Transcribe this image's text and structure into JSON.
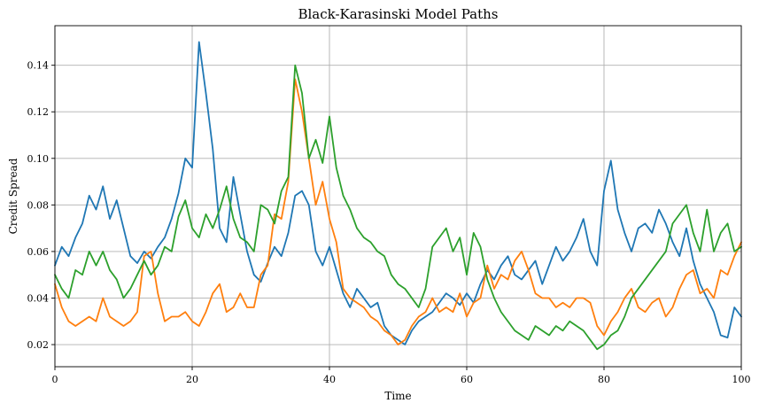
{
  "chart_data": {
    "type": "line",
    "title": "Black-Karasinski Model Paths",
    "xlabel": "Time",
    "ylabel": "Credit Spread",
    "xlim": [
      0,
      100
    ],
    "ylim": [
      0.0105,
      0.157
    ],
    "xticks": [
      0,
      20,
      40,
      60,
      80,
      100
    ],
    "xtick_labels": [
      "0",
      "20",
      "40",
      "60",
      "80",
      "100"
    ],
    "yticks": [
      0.02,
      0.04,
      0.06,
      0.08,
      0.1,
      0.12,
      0.14
    ],
    "ytick_labels": [
      "0.02",
      "0.04",
      "0.06",
      "0.08",
      "0.10",
      "0.12",
      "0.14"
    ],
    "grid": true,
    "series": [
      {
        "color": "#1f77b4",
        "x": [
          0,
          1,
          2,
          3,
          4,
          5,
          6,
          7,
          8,
          9,
          10,
          11,
          12,
          13,
          14,
          15,
          16,
          17,
          18,
          19,
          20,
          21,
          22,
          23,
          24,
          25,
          26,
          27,
          28,
          29,
          30,
          31,
          32,
          33,
          34,
          35,
          36,
          37,
          38,
          39,
          40,
          41,
          42,
          43,
          44,
          45,
          46,
          47,
          48,
          49,
          50,
          51,
          52,
          53,
          54,
          55,
          56,
          57,
          58,
          59,
          60,
          61,
          62,
          63,
          64,
          65,
          66,
          67,
          68,
          69,
          70,
          71,
          72,
          73,
          74,
          75,
          76,
          77,
          78,
          79,
          80,
          81,
          82,
          83,
          84,
          85,
          86,
          87,
          88,
          89,
          90,
          91,
          92,
          93,
          94,
          95,
          96,
          97,
          98,
          99,
          100
        ],
        "values": [
          0.054,
          0.062,
          0.058,
          0.066,
          0.072,
          0.084,
          0.078,
          0.088,
          0.074,
          0.082,
          0.07,
          0.058,
          0.055,
          0.06,
          0.057,
          0.062,
          0.066,
          0.074,
          0.085,
          0.1,
          0.096,
          0.15,
          0.128,
          0.104,
          0.07,
          0.064,
          0.092,
          0.076,
          0.06,
          0.05,
          0.047,
          0.055,
          0.062,
          0.058,
          0.068,
          0.084,
          0.086,
          0.08,
          0.06,
          0.054,
          0.062,
          0.052,
          0.042,
          0.036,
          0.044,
          0.04,
          0.036,
          0.038,
          0.028,
          0.024,
          0.022,
          0.02,
          0.026,
          0.03,
          0.032,
          0.034,
          0.038,
          0.042,
          0.04,
          0.037,
          0.042,
          0.038,
          0.046,
          0.052,
          0.048,
          0.054,
          0.058,
          0.05,
          0.048,
          0.052,
          0.056,
          0.046,
          0.054,
          0.062,
          0.056,
          0.06,
          0.066,
          0.074,
          0.06,
          0.054,
          0.086,
          0.099,
          0.078,
          0.068,
          0.06,
          0.07,
          0.072,
          0.068,
          0.078,
          0.072,
          0.064,
          0.058,
          0.07,
          0.056,
          0.046,
          0.04,
          0.034,
          0.024,
          0.023,
          0.036,
          0.032
        ]
      },
      {
        "color": "#ff7f0e",
        "x": [
          0,
          1,
          2,
          3,
          4,
          5,
          6,
          7,
          8,
          9,
          10,
          11,
          12,
          13,
          14,
          15,
          16,
          17,
          18,
          19,
          20,
          21,
          22,
          23,
          24,
          25,
          26,
          27,
          28,
          29,
          30,
          31,
          32,
          33,
          34,
          35,
          36,
          37,
          38,
          39,
          40,
          41,
          42,
          43,
          44,
          45,
          46,
          47,
          48,
          49,
          50,
          51,
          52,
          53,
          54,
          55,
          56,
          57,
          58,
          59,
          60,
          61,
          62,
          63,
          64,
          65,
          66,
          67,
          68,
          69,
          70,
          71,
          72,
          73,
          74,
          75,
          76,
          77,
          78,
          79,
          80,
          81,
          82,
          83,
          84,
          85,
          86,
          87,
          88,
          89,
          90,
          91,
          92,
          93,
          94,
          95,
          96,
          97,
          98,
          99,
          100
        ],
        "values": [
          0.046,
          0.036,
          0.03,
          0.028,
          0.03,
          0.032,
          0.03,
          0.04,
          0.032,
          0.03,
          0.028,
          0.03,
          0.034,
          0.058,
          0.06,
          0.042,
          0.03,
          0.032,
          0.032,
          0.034,
          0.03,
          0.028,
          0.034,
          0.042,
          0.046,
          0.034,
          0.036,
          0.042,
          0.036,
          0.036,
          0.05,
          0.054,
          0.076,
          0.074,
          0.09,
          0.134,
          0.12,
          0.1,
          0.08,
          0.09,
          0.074,
          0.064,
          0.044,
          0.04,
          0.038,
          0.036,
          0.032,
          0.03,
          0.026,
          0.024,
          0.02,
          0.022,
          0.028,
          0.032,
          0.034,
          0.04,
          0.034,
          0.036,
          0.034,
          0.042,
          0.032,
          0.038,
          0.04,
          0.054,
          0.044,
          0.05,
          0.048,
          0.056,
          0.06,
          0.052,
          0.042,
          0.04,
          0.04,
          0.036,
          0.038,
          0.036,
          0.04,
          0.04,
          0.038,
          0.028,
          0.024,
          0.03,
          0.034,
          0.04,
          0.044,
          0.036,
          0.034,
          0.038,
          0.04,
          0.032,
          0.036,
          0.044,
          0.05,
          0.052,
          0.042,
          0.044,
          0.04,
          0.052,
          0.05,
          0.058,
          0.064
        ]
      },
      {
        "color": "#2ca02c",
        "x": [
          0,
          1,
          2,
          3,
          4,
          5,
          6,
          7,
          8,
          9,
          10,
          11,
          12,
          13,
          14,
          15,
          16,
          17,
          18,
          19,
          20,
          21,
          22,
          23,
          24,
          25,
          26,
          27,
          28,
          29,
          30,
          31,
          32,
          33,
          34,
          35,
          36,
          37,
          38,
          39,
          40,
          41,
          42,
          43,
          44,
          45,
          46,
          47,
          48,
          49,
          50,
          51,
          52,
          53,
          54,
          55,
          56,
          57,
          58,
          59,
          60,
          61,
          62,
          63,
          64,
          65,
          66,
          67,
          68,
          69,
          70,
          71,
          72,
          73,
          74,
          75,
          76,
          77,
          78,
          79,
          80,
          81,
          82,
          83,
          84,
          85,
          86,
          87,
          88,
          89,
          90,
          91,
          92,
          93,
          94,
          95,
          96,
          97,
          98,
          99,
          100
        ],
        "values": [
          0.05,
          0.044,
          0.04,
          0.052,
          0.05,
          0.06,
          0.054,
          0.06,
          0.052,
          0.048,
          0.04,
          0.044,
          0.05,
          0.056,
          0.05,
          0.054,
          0.062,
          0.06,
          0.075,
          0.082,
          0.07,
          0.066,
          0.076,
          0.07,
          0.078,
          0.088,
          0.074,
          0.066,
          0.064,
          0.06,
          0.08,
          0.078,
          0.072,
          0.086,
          0.092,
          0.14,
          0.128,
          0.1,
          0.108,
          0.098,
          0.118,
          0.096,
          0.084,
          0.078,
          0.07,
          0.066,
          0.064,
          0.06,
          0.058,
          0.05,
          0.046,
          0.044,
          0.04,
          0.036,
          0.044,
          0.062,
          0.066,
          0.07,
          0.06,
          0.066,
          0.05,
          0.068,
          0.062,
          0.048,
          0.04,
          0.034,
          0.03,
          0.026,
          0.024,
          0.022,
          0.028,
          0.026,
          0.024,
          0.028,
          0.026,
          0.03,
          0.028,
          0.026,
          0.022,
          0.018,
          0.02,
          0.024,
          0.026,
          0.032,
          0.04,
          0.044,
          0.048,
          0.052,
          0.056,
          0.06,
          0.072,
          0.076,
          0.08,
          0.068,
          0.06,
          0.078,
          0.06,
          0.068,
          0.072,
          0.06,
          0.062
        ]
      }
    ]
  }
}
